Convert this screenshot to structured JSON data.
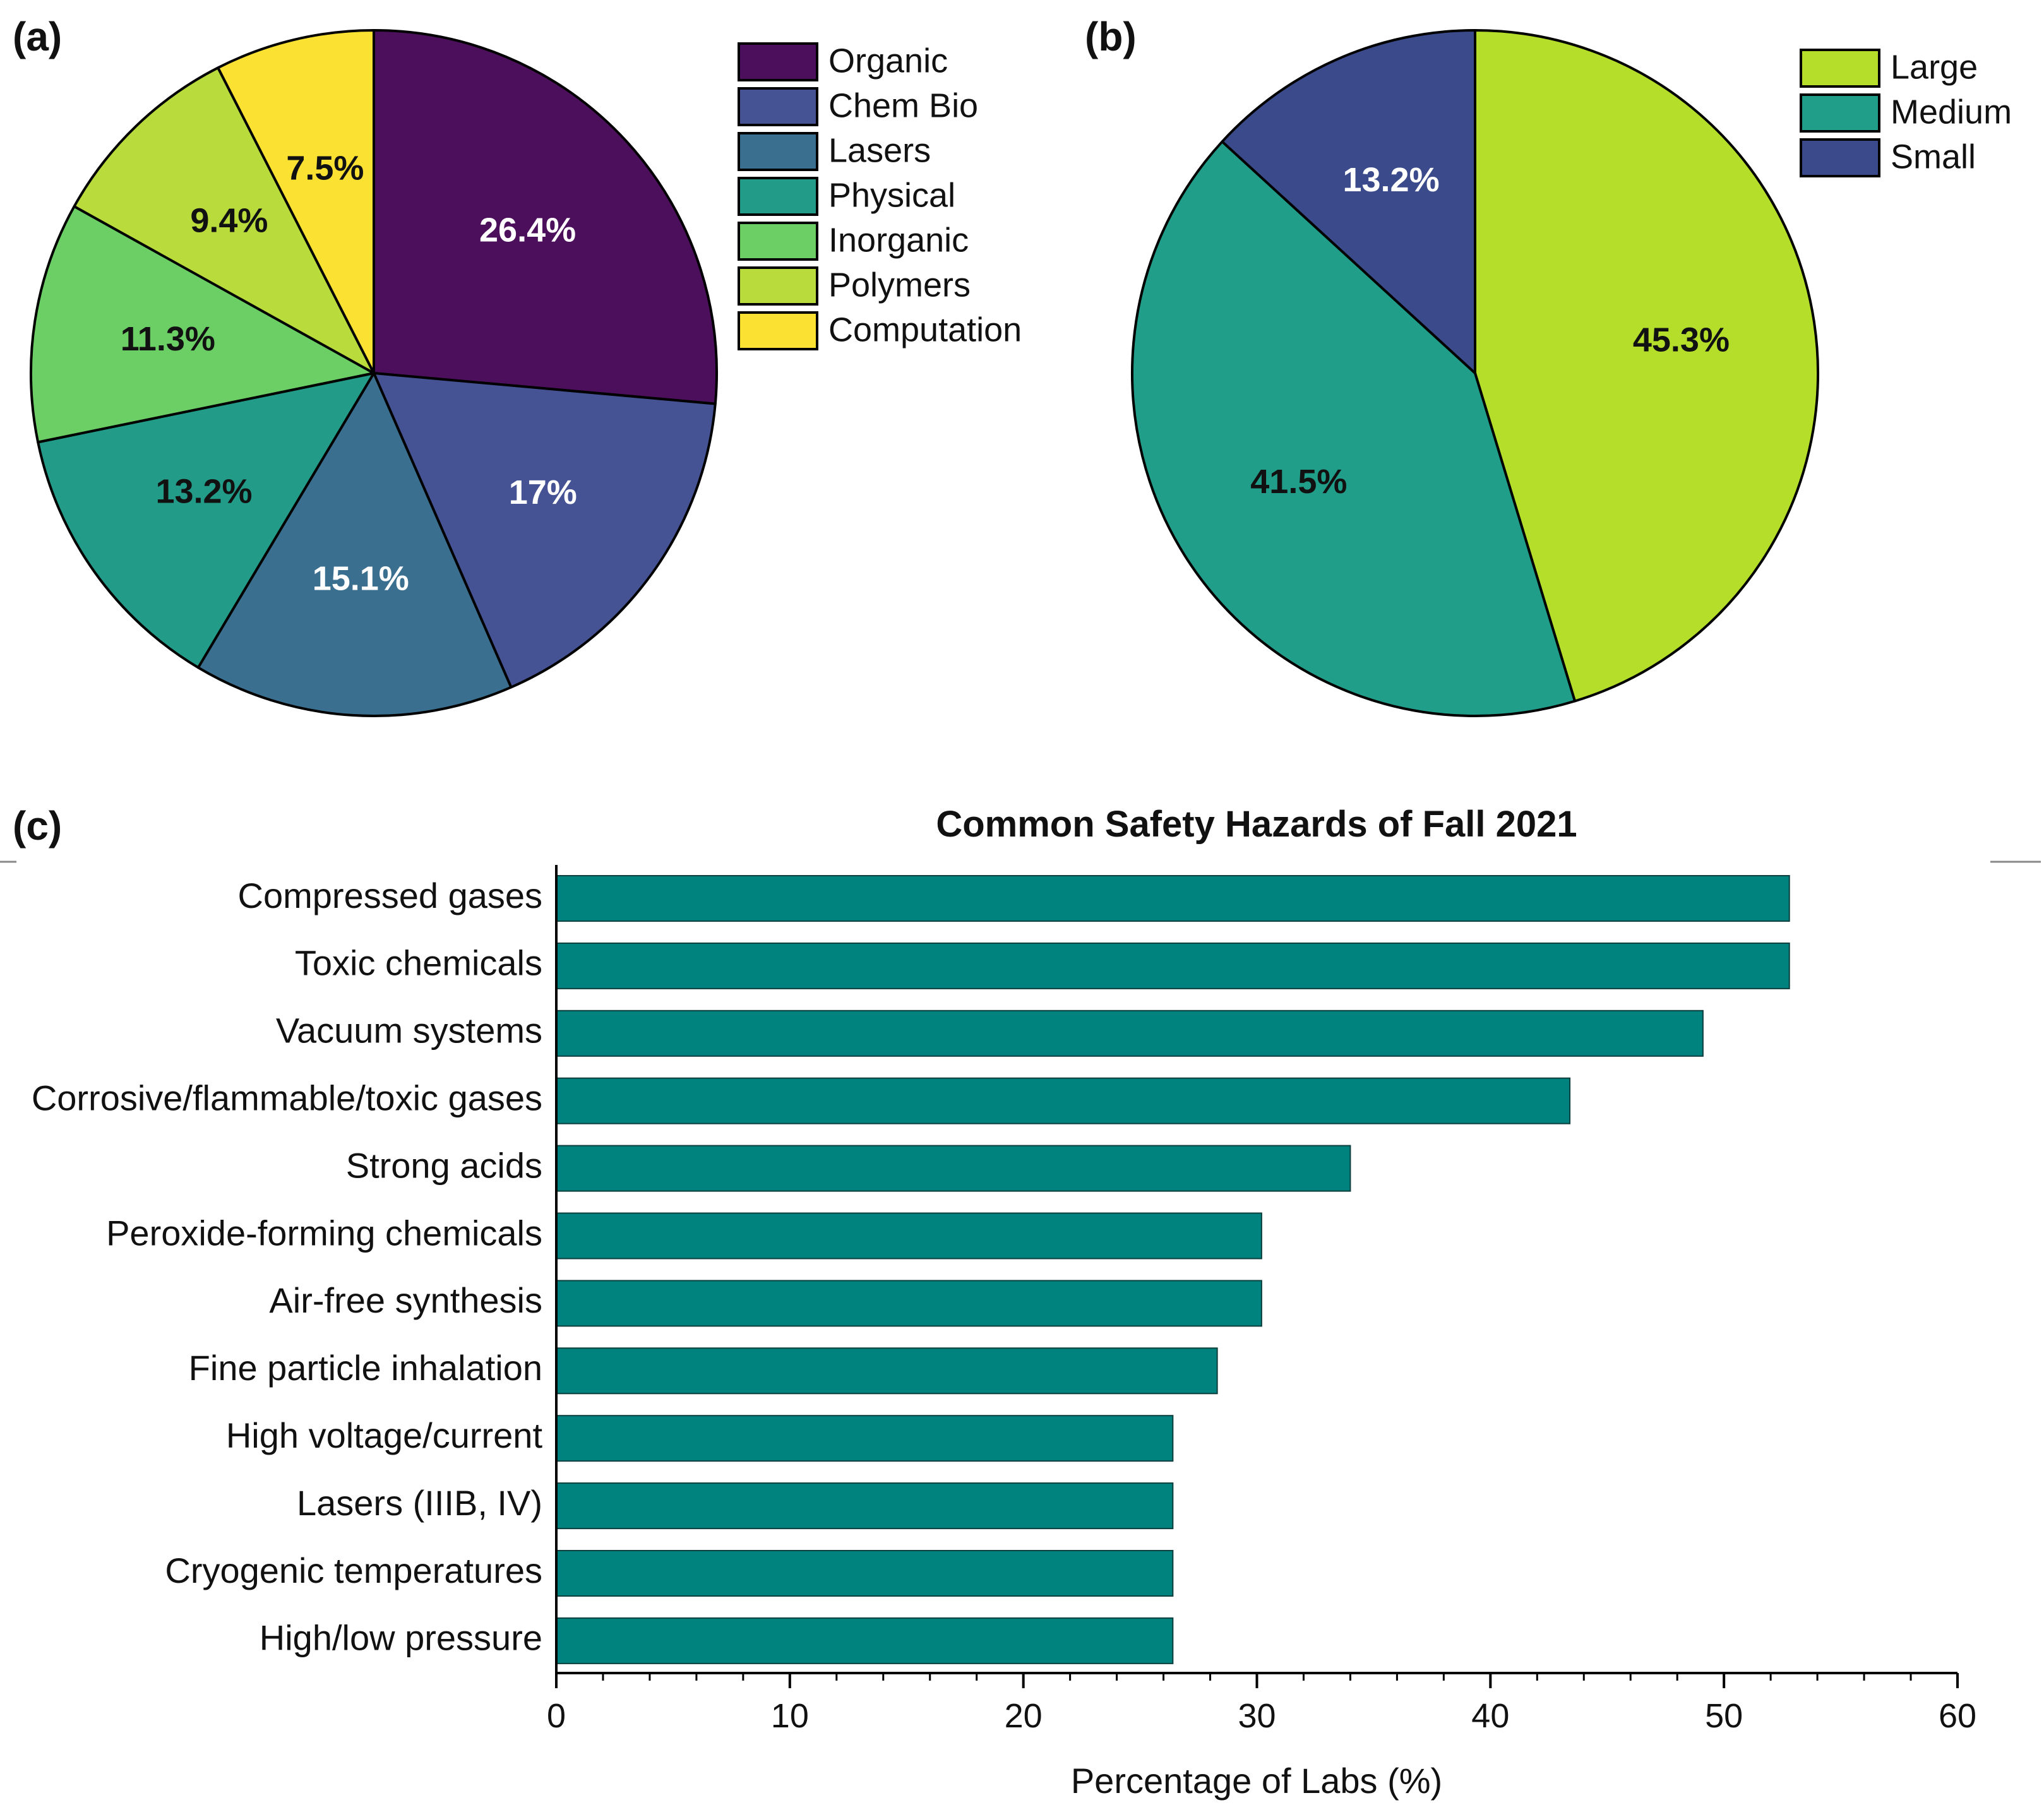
{
  "panel_labels": {
    "a": "(a)",
    "b": "(b)",
    "c": "(c)"
  },
  "colors": {
    "Organic": "#4b0f5c",
    "Chem Bio": "#455293",
    "Lasers": "#3a6f8f",
    "Physical": "#229b88",
    "Inorganic": "#6ccf66",
    "Polymers": "#b9dc3c",
    "Computation": "#fbe232",
    "Large": "#b5de2b",
    "Medium": "#219e89",
    "Small": "#3b4a8b",
    "bar": "#00827f"
  },
  "chart_data": [
    {
      "type": "pie",
      "panel": "(a)",
      "title": "",
      "slices": [
        {
          "label": "Organic",
          "value": 26.4,
          "text": "26.4%",
          "text_color": "#ffffff"
        },
        {
          "label": "Chem Bio",
          "value": 17,
          "text": "17%",
          "text_color": "#ffffff"
        },
        {
          "label": "Lasers",
          "value": 15.1,
          "text": "15.1%",
          "text_color": "#ffffff"
        },
        {
          "label": "Physical",
          "value": 13.2,
          "text": "13.2%",
          "text_color": "#111111"
        },
        {
          "label": "Inorganic",
          "value": 11.3,
          "text": "11.3%",
          "text_color": "#111111"
        },
        {
          "label": "Polymers",
          "value": 9.4,
          "text": "9.4%",
          "text_color": "#111111"
        },
        {
          "label": "Computation",
          "value": 7.5,
          "text": "7.5%",
          "text_color": "#111111"
        }
      ],
      "start": "12 o'clock, clockwise",
      "legend": [
        "Organic",
        "Chem Bio",
        "Lasers",
        "Physical",
        "Inorganic",
        "Polymers",
        "Computation"
      ],
      "legend_position": "right"
    },
    {
      "type": "pie",
      "panel": "(b)",
      "title": "",
      "slices": [
        {
          "label": "Large",
          "value": 45.3,
          "text": "45.3%",
          "text_color": "#111111"
        },
        {
          "label": "Medium",
          "value": 41.5,
          "text": "41.5%",
          "text_color": "#111111"
        },
        {
          "label": "Small",
          "value": 13.2,
          "text": "13.2%",
          "text_color": "#ffffff"
        }
      ],
      "start": "12 o'clock, clockwise",
      "legend": [
        "Large",
        "Medium",
        "Small"
      ],
      "legend_position": "top-right"
    },
    {
      "type": "bar",
      "orientation": "horizontal",
      "panel": "(c)",
      "title": "Common Safety Hazards of Fall 2021",
      "categories": [
        "Compressed gases",
        "Toxic chemicals",
        "Vacuum systems",
        "Corrosive/flammable/toxic gases",
        "Strong acids",
        "Peroxide-forming chemicals",
        "Air-free synthesis ",
        "Fine particle inhalation",
        "High voltage/current",
        "Lasers (IIIB, IV)",
        "Cryogenic temperatures",
        "High/low pressure"
      ],
      "values": [
        52.8,
        52.8,
        49.1,
        43.4,
        34.0,
        30.2,
        30.2,
        28.3,
        26.4,
        26.4,
        26.4,
        26.4
      ],
      "xlabel": "Percentage of Labs (%)",
      "ylabel": "",
      "xlim": [
        0,
        60
      ],
      "xticks": [
        0,
        10,
        20,
        30,
        40,
        50,
        60
      ],
      "grid": false
    }
  ]
}
